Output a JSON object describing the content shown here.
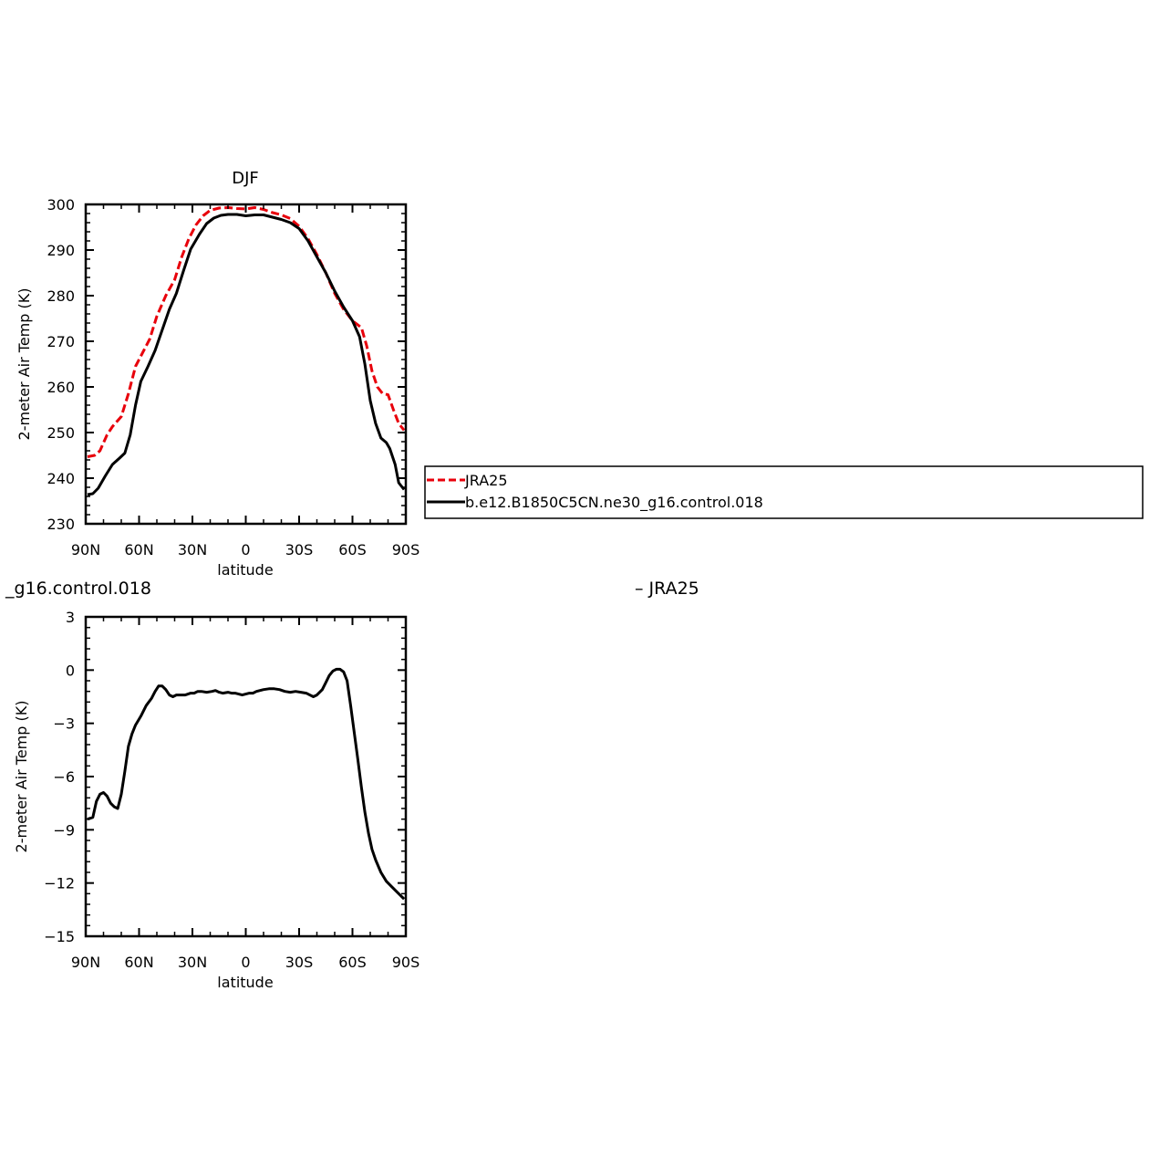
{
  "chart_data": [
    {
      "type": "line",
      "title": "DJF",
      "xlabel": "latitude",
      "ylabel": "2-meter Air Temp (K)",
      "xlim": [
        90,
        -90
      ],
      "ylim": [
        230,
        300
      ],
      "xticks": [
        90,
        60,
        30,
        0,
        -30,
        -60,
        -90
      ],
      "xtick_labels": [
        "90N",
        "60N",
        "30N",
        "0",
        "30S",
        "60S",
        "90S"
      ],
      "yticks": [
        230,
        240,
        250,
        260,
        270,
        280,
        290,
        300
      ],
      "ytick_labels": [
        "230",
        "240",
        "250",
        "260",
        "270",
        "280",
        "290",
        "300"
      ],
      "grid": false,
      "legend_position": "right",
      "series": [
        {
          "name": "JRA25",
          "color": "#e8000b",
          "dash": "dashed",
          "points": [
            [
              89,
              244.7
            ],
            [
              85,
              245.0
            ],
            [
              82,
              246.0
            ],
            [
              78,
              249.5
            ],
            [
              75,
              251.3
            ],
            [
              70,
              253.5
            ],
            [
              66,
              258.5
            ],
            [
              62,
              264.5
            ],
            [
              58,
              267.5
            ],
            [
              54,
              270.5
            ],
            [
              50,
              275.5
            ],
            [
              45,
              280.0
            ],
            [
              40,
              283.5
            ],
            [
              36,
              288.5
            ],
            [
              32,
              292.5
            ],
            [
              28,
              295.5
            ],
            [
              24,
              297.5
            ],
            [
              20,
              298.7
            ],
            [
              15,
              299.2
            ],
            [
              10,
              299.3
            ],
            [
              5,
              299.1
            ],
            [
              0,
              299.0
            ],
            [
              -5,
              299.3
            ],
            [
              -10,
              298.9
            ],
            [
              -15,
              298.2
            ],
            [
              -20,
              297.7
            ],
            [
              -25,
              296.9
            ],
            [
              -30,
              295.2
            ],
            [
              -35,
              292.5
            ],
            [
              -40,
              289.0
            ],
            [
              -45,
              285.0
            ],
            [
              -50,
              280.5
            ],
            [
              -55,
              277.0
            ],
            [
              -60,
              274.5
            ],
            [
              -65,
              273.0
            ],
            [
              -68,
              269.0
            ],
            [
              -71,
              263.5
            ],
            [
              -74,
              260.0
            ],
            [
              -77,
              258.5
            ],
            [
              -80,
              258.3
            ],
            [
              -83,
              255.0
            ],
            [
              -86,
              252.0
            ],
            [
              -89,
              250.5
            ]
          ]
        },
        {
          "name": "b.e12.B1850C5CN.ne30_g16.control.018",
          "color": "#000000",
          "dash": "solid",
          "points": [
            [
              89,
              236.4
            ],
            [
              86,
              236.6
            ],
            [
              83,
              237.8
            ],
            [
              79,
              240.5
            ],
            [
              75,
              243.0
            ],
            [
              71,
              244.4
            ],
            [
              68,
              245.5
            ],
            [
              65,
              249.5
            ],
            [
              62,
              256.0
            ],
            [
              59,
              261.2
            ],
            [
              55,
              264.5
            ],
            [
              51,
              268.0
            ],
            [
              47,
              272.5
            ],
            [
              43,
              277.0
            ],
            [
              39,
              280.5
            ],
            [
              35,
              285.5
            ],
            [
              31,
              290.2
            ],
            [
              26,
              293.5
            ],
            [
              22,
              295.8
            ],
            [
              18,
              297.0
            ],
            [
              14,
              297.6
            ],
            [
              10,
              297.8
            ],
            [
              5,
              297.8
            ],
            [
              0,
              297.5
            ],
            [
              -5,
              297.7
            ],
            [
              -10,
              297.7
            ],
            [
              -15,
              297.2
            ],
            [
              -20,
              296.7
            ],
            [
              -25,
              296.0
            ],
            [
              -30,
              294.7
            ],
            [
              -35,
              292.0
            ],
            [
              -40,
              288.5
            ],
            [
              -45,
              285.0
            ],
            [
              -50,
              281.0
            ],
            [
              -55,
              277.5
            ],
            [
              -60,
              274.5
            ],
            [
              -64,
              271.0
            ],
            [
              -67,
              265.0
            ],
            [
              -70,
              257.0
            ],
            [
              -73,
              252.0
            ],
            [
              -76,
              248.8
            ],
            [
              -79,
              247.8
            ],
            [
              -81,
              246.5
            ],
            [
              -84,
              243.0
            ],
            [
              -86,
              239.0
            ],
            [
              -89,
              237.5
            ]
          ]
        }
      ]
    },
    {
      "type": "line",
      "title_left": "_g16.control.018",
      "title_right": "– JRA25",
      "xlabel": "latitude",
      "ylabel": "2-meter Air Temp (K)",
      "xlim": [
        90,
        -90
      ],
      "ylim": [
        -15,
        3
      ],
      "xticks": [
        90,
        60,
        30,
        0,
        -30,
        -60,
        -90
      ],
      "xtick_labels": [
        "90N",
        "60N",
        "30N",
        "0",
        "30S",
        "60S",
        "90S"
      ],
      "yticks": [
        -15,
        -12,
        -9,
        -6,
        -3,
        0,
        3
      ],
      "ytick_labels": [
        "−15",
        "−12",
        "−9",
        "−6",
        "−3",
        "0",
        "3"
      ],
      "grid": false,
      "series": [
        {
          "color": "#000000",
          "dash": "solid",
          "points": [
            [
              89,
              -8.4
            ],
            [
              86,
              -8.3
            ],
            [
              84,
              -7.4
            ],
            [
              82,
              -7.0
            ],
            [
              80,
              -6.9
            ],
            [
              78,
              -7.1
            ],
            [
              76,
              -7.5
            ],
            [
              74,
              -7.7
            ],
            [
              72,
              -7.8
            ],
            [
              70,
              -7.0
            ],
            [
              68,
              -5.7
            ],
            [
              66,
              -4.3
            ],
            [
              64,
              -3.6
            ],
            [
              62,
              -3.1
            ],
            [
              59,
              -2.6
            ],
            [
              56,
              -2.0
            ],
            [
              53,
              -1.6
            ],
            [
              51,
              -1.2
            ],
            [
              49,
              -0.9
            ],
            [
              47,
              -0.9
            ],
            [
              45,
              -1.1
            ],
            [
              43,
              -1.4
            ],
            [
              41,
              -1.5
            ],
            [
              39,
              -1.4
            ],
            [
              36,
              -1.4
            ],
            [
              34,
              -1.4
            ],
            [
              31,
              -1.3
            ],
            [
              29,
              -1.3
            ],
            [
              27,
              -1.2
            ],
            [
              25,
              -1.2
            ],
            [
              22,
              -1.25
            ],
            [
              19,
              -1.2
            ],
            [
              17,
              -1.15
            ],
            [
              15,
              -1.25
            ],
            [
              13,
              -1.3
            ],
            [
              10,
              -1.25
            ],
            [
              8,
              -1.3
            ],
            [
              6,
              -1.3
            ],
            [
              4,
              -1.35
            ],
            [
              2,
              -1.4
            ],
            [
              0,
              -1.35
            ],
            [
              -2,
              -1.3
            ],
            [
              -4,
              -1.3
            ],
            [
              -6,
              -1.2
            ],
            [
              -8,
              -1.15
            ],
            [
              -10,
              -1.1
            ],
            [
              -13,
              -1.05
            ],
            [
              -16,
              -1.05
            ],
            [
              -19,
              -1.1
            ],
            [
              -22,
              -1.2
            ],
            [
              -25,
              -1.25
            ],
            [
              -28,
              -1.2
            ],
            [
              -31,
              -1.25
            ],
            [
              -34,
              -1.3
            ],
            [
              -36,
              -1.4
            ],
            [
              -38,
              -1.5
            ],
            [
              -40,
              -1.4
            ],
            [
              -43,
              -1.1
            ],
            [
              -45,
              -0.7
            ],
            [
              -47,
              -0.3
            ],
            [
              -49,
              -0.05
            ],
            [
              -51,
              0.05
            ],
            [
              -53,
              0.05
            ],
            [
              -55,
              -0.1
            ],
            [
              -57,
              -0.6
            ],
            [
              -59,
              -2.0
            ],
            [
              -61,
              -3.5
            ],
            [
              -63,
              -5.0
            ],
            [
              -65,
              -6.6
            ],
            [
              -67,
              -8.0
            ],
            [
              -69,
              -9.2
            ],
            [
              -71,
              -10.1
            ],
            [
              -73,
              -10.7
            ],
            [
              -76,
              -11.4
            ],
            [
              -79,
              -11.9
            ],
            [
              -82,
              -12.2
            ],
            [
              -85,
              -12.5
            ],
            [
              -88,
              -12.8
            ],
            [
              -89,
              -12.9
            ]
          ]
        }
      ]
    }
  ]
}
